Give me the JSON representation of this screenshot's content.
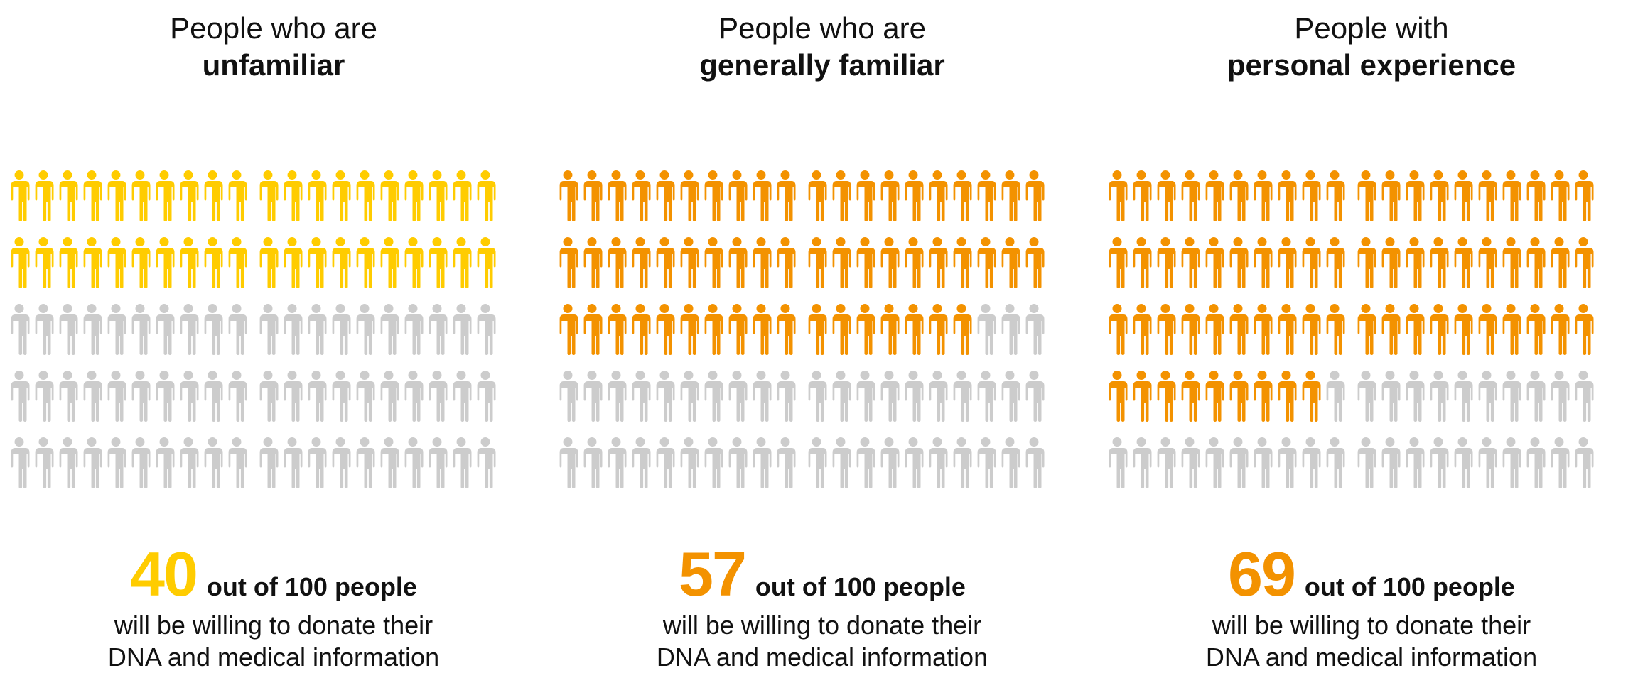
{
  "colors": {
    "yellow": "#FFCC00",
    "orange": "#F39200",
    "gray": "#CCCCCC"
  },
  "panels": [
    {
      "title_line1": "People who are",
      "title_line2": "unfamiliar",
      "highlight": "yellow",
      "value": "40",
      "suffix": "out of 100 people",
      "desc_line1": "will be willing to donate their",
      "desc_line2": "DNA and medical information"
    },
    {
      "title_line1": "People who are",
      "title_line2": "generally familiar",
      "highlight": "orange",
      "value": "57",
      "suffix": "out of 100 people",
      "desc_line1": "will be willing to donate their",
      "desc_line2": "DNA and medical information"
    },
    {
      "title_line1": "People with",
      "title_line2": "personal experience",
      "highlight": "orange",
      "value": "69",
      "suffix": "out of 100 people",
      "desc_line1": "will be willing to donate their",
      "desc_line2": "DNA and medical information"
    }
  ],
  "chart_data": {
    "type": "pictogram",
    "total_per_group": 100,
    "categories": [
      "unfamiliar",
      "generally familiar",
      "personal experience"
    ],
    "values": [
      40,
      57,
      69
    ]
  }
}
